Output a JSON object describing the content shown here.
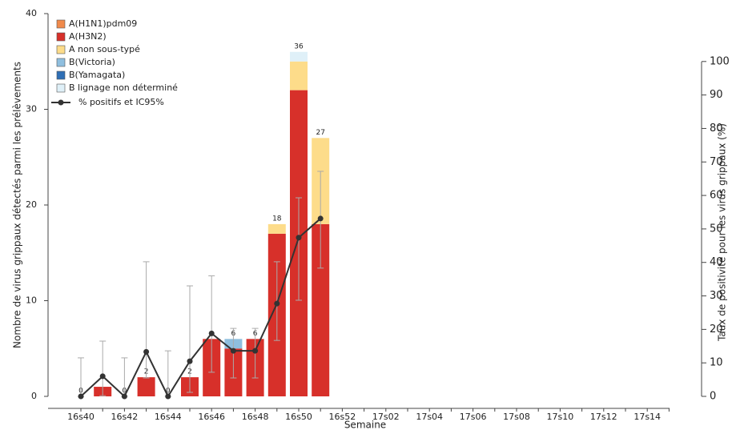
{
  "chart_data": {
    "type": "bar",
    "stacked": true,
    "x_label": "Semaine",
    "y_label": "Nombre de virus grippaux détectés parmi les prélèvements",
    "y2_label": "Taux de positivité pour les virus grippaux (%)",
    "categories": [
      "16s40",
      null,
      "16s42",
      null,
      "16s44",
      null,
      "16s46",
      null,
      "16s48",
      null,
      "16s50",
      null,
      "16s52",
      null,
      "17s02",
      null,
      "17s04",
      null,
      "17s06",
      null,
      "17s08",
      null,
      "17s10",
      null,
      "17s12",
      null,
      "17s14",
      null
    ],
    "ylim": [
      0,
      40
    ],
    "yticks": [
      0,
      10,
      20,
      30,
      40
    ],
    "y2lim": [
      0,
      114.3
    ],
    "y2ticks": [
      0,
      10,
      20,
      30,
      40,
      50,
      60,
      70,
      80,
      90,
      100
    ],
    "legend": "top-left",
    "series": [
      {
        "name": "A(H1N1)pdm09",
        "color": "#f08a4b",
        "values": [
          0,
          0,
          0,
          0,
          0,
          0,
          0,
          0,
          0,
          0,
          0,
          0,
          null,
          null,
          null,
          null,
          null,
          null,
          null,
          null,
          null,
          null,
          null,
          null,
          null,
          null,
          null,
          null
        ]
      },
      {
        "name": "A(H3N2)",
        "color": "#d7302a",
        "values": [
          0,
          1,
          0,
          2,
          0,
          2,
          6,
          5,
          6,
          17,
          32,
          18,
          null,
          null,
          null,
          null,
          null,
          null,
          null,
          null,
          null,
          null,
          null,
          null,
          null,
          null,
          null,
          null
        ]
      },
      {
        "name": "A non sous-typé",
        "color": "#fddc8a",
        "values": [
          0,
          0,
          0,
          0,
          0,
          0,
          0,
          0,
          0,
          1,
          3,
          9,
          null,
          null,
          null,
          null,
          null,
          null,
          null,
          null,
          null,
          null,
          null,
          null,
          null,
          null,
          null,
          null
        ]
      },
      {
        "name": "B(Victoria)",
        "color": "#8fbfdf",
        "values": [
          0,
          0,
          0,
          0,
          0,
          0,
          0,
          1,
          0,
          0,
          0,
          0,
          null,
          null,
          null,
          null,
          null,
          null,
          null,
          null,
          null,
          null,
          null,
          null,
          null,
          null,
          null,
          null
        ]
      },
      {
        "name": "B(Yamagata)",
        "color": "#2f6fb5",
        "values": [
          0,
          0,
          0,
          0,
          0,
          0,
          0,
          0,
          0,
          0,
          0,
          0,
          null,
          null,
          null,
          null,
          null,
          null,
          null,
          null,
          null,
          null,
          null,
          null,
          null,
          null,
          null,
          null
        ]
      },
      {
        "name": "B lignage non déterminé",
        "color": "#dff0f8",
        "values": [
          0,
          0,
          0,
          0,
          0,
          0,
          0,
          0,
          0,
          0,
          1,
          0,
          null,
          null,
          null,
          null,
          null,
          null,
          null,
          null,
          null,
          null,
          null,
          null,
          null,
          null,
          null,
          null
        ]
      },
      {
        "name": "% positifs et IC95%",
        "type": "line",
        "axis": "y2",
        "color": "#333333",
        "values": [
          0,
          6,
          0,
          13.3,
          0,
          10.5,
          18.8,
          13.6,
          13.6,
          27.7,
          47.4,
          53.1,
          null,
          null,
          null,
          null,
          null,
          null,
          null,
          null,
          null,
          null,
          null,
          null,
          null,
          null,
          null,
          null
        ],
        "ci_low": [
          0,
          0.2,
          0,
          5.5,
          0,
          1.2,
          7.2,
          5.5,
          5.5,
          16.7,
          28.7,
          38.3,
          null,
          null,
          null,
          null,
          null,
          null,
          null,
          null,
          null,
          null,
          null,
          null,
          null,
          null,
          null,
          null
        ],
        "ci_high": [
          11.5,
          16.5,
          11.5,
          40.2,
          13.6,
          33,
          36,
          20.3,
          20.3,
          40.2,
          59.3,
          67.2,
          null,
          null,
          null,
          null,
          null,
          null,
          null,
          null,
          null,
          null,
          null,
          null,
          null,
          null,
          null,
          null
        ]
      }
    ],
    "totals": [
      0,
      null,
      0,
      2,
      0,
      2,
      null,
      6,
      6,
      18,
      36,
      27,
      null,
      null,
      null,
      null,
      null,
      null,
      null,
      null,
      null,
      null,
      null,
      null,
      null,
      null,
      null,
      null
    ]
  }
}
